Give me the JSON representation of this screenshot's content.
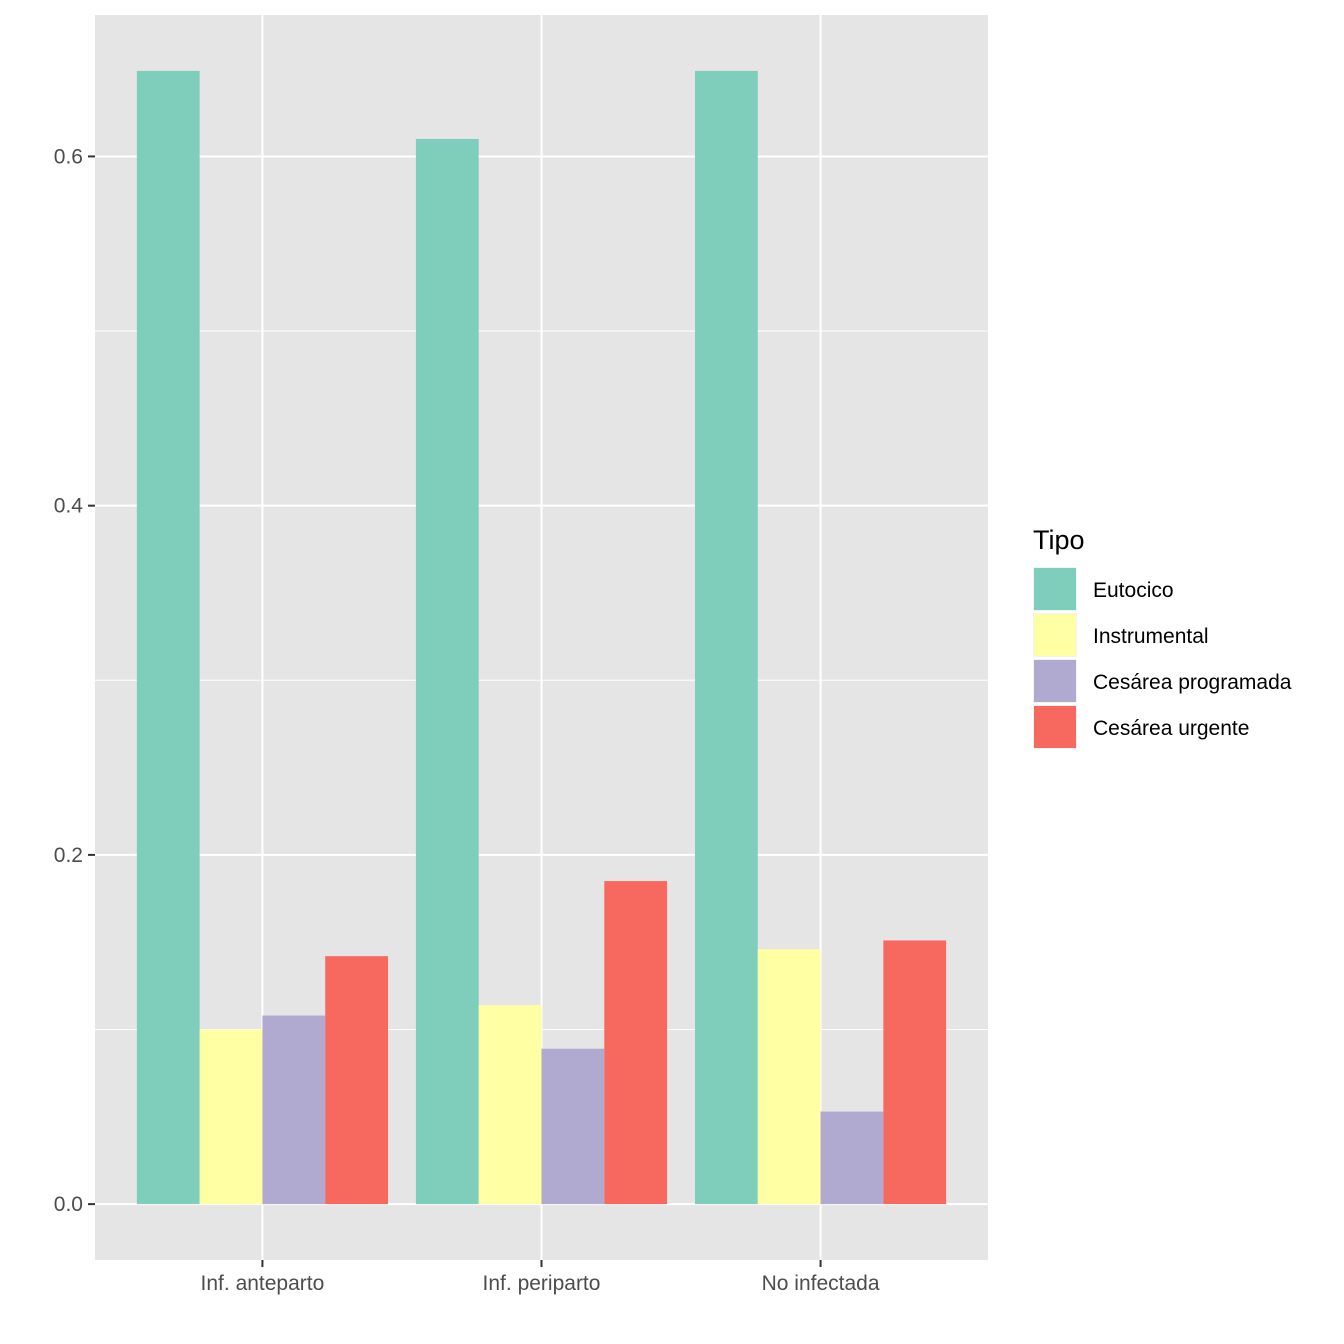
{
  "chart_data": {
    "type": "bar",
    "categories": [
      "Inf. anteparto",
      "Inf. periparto",
      "No infectada"
    ],
    "series": [
      {
        "name": "Eutocico",
        "values": [
          0.649,
          0.61,
          0.649
        ],
        "color": "#7fcdbb"
      },
      {
        "name": "Instrumental",
        "values": [
          0.1,
          0.114,
          0.146
        ],
        "color": "#ffffa3"
      },
      {
        "name": "Cesárea programada",
        "values": [
          0.108,
          0.089,
          0.053
        ],
        "color": "#b1aad0"
      },
      {
        "name": "Cesárea urgente",
        "values": [
          0.142,
          0.185,
          0.151
        ],
        "color": "#f7685f"
      }
    ],
    "ylim": [
      -0.032,
      0.681
    ],
    "yticks": [
      0.0,
      0.2,
      0.4,
      0.6
    ],
    "ytick_labels": [
      "0.0",
      "0.2",
      "0.4",
      "0.6"
    ],
    "grid": true,
    "legend_title": "Tipo",
    "legend_position": "right",
    "panel_background": "#e5e5e5"
  }
}
